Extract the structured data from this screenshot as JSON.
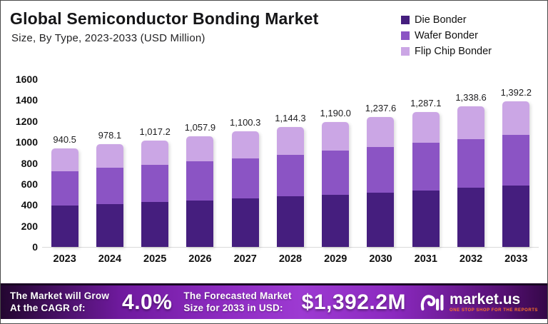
{
  "header": {
    "title": "Global Semiconductor Bonding Market",
    "subtitle": "Size, By Type, 2023-2033 (USD Million)"
  },
  "legend": [
    {
      "label": "Die Bonder",
      "color": "#451e7e"
    },
    {
      "label": "Wafer Bonder",
      "color": "#8b54c4"
    },
    {
      "label": "Flip Chip Bonder",
      "color": "#cba6e5"
    }
  ],
  "chart_data": {
    "type": "bar",
    "stacked": true,
    "title": "Global Semiconductor Bonding Market Size, By Type, 2023-2033 (USD Million)",
    "categories": [
      "2023",
      "2024",
      "2025",
      "2026",
      "2027",
      "2028",
      "2029",
      "2030",
      "2031",
      "2032",
      "2033"
    ],
    "totals": [
      940.5,
      978.1,
      1017.2,
      1057.9,
      1100.3,
      1144.3,
      1190.0,
      1237.6,
      1287.1,
      1338.6,
      1392.2
    ],
    "total_labels": [
      "940.5",
      "978.1",
      "1,017.2",
      "1,057.9",
      "1,100.3",
      "1,144.3",
      "1,190.0",
      "1,237.6",
      "1,287.1",
      "1,338.6",
      "1,392.2"
    ],
    "series": [
      {
        "name": "Die Bonder",
        "color": "#451e7e",
        "values": [
          395.0,
          410.8,
          427.2,
          444.3,
          462.1,
          480.6,
          499.8,
          519.8,
          540.6,
          562.2,
          584.7
        ]
      },
      {
        "name": "Wafer Bonder",
        "color": "#8b54c4",
        "values": [
          329.2,
          342.3,
          356.0,
          370.3,
          385.1,
          400.5,
          416.5,
          433.2,
          450.5,
          468.5,
          487.3
        ]
      },
      {
        "name": "Flip Chip Bonder",
        "color": "#cba6e5",
        "values": [
          216.3,
          225.0,
          234.0,
          243.3,
          253.1,
          263.2,
          273.7,
          284.6,
          296.0,
          307.9,
          320.2
        ]
      }
    ],
    "xlabel": "",
    "ylabel": "",
    "ylim": [
      0,
      1600
    ],
    "yticks": [
      0,
      200,
      400,
      600,
      800,
      1000,
      1200,
      1400,
      1600
    ],
    "grid": false,
    "legend_position": "top-right",
    "note": "Series values estimated from stacked segment heights; totals are labeled on chart"
  },
  "banner": {
    "cagr_line1": "The Market will Grow",
    "cagr_line2": "At the CAGR of:",
    "cagr_value": "4.0%",
    "forecast_line1": "The Forecasted Market",
    "forecast_line2": "Size for 2033 in USD:",
    "forecast_value": "$1,392.2M",
    "brand": "market.us",
    "brand_tagline": "ONE STOP SHOP FOR THE REPORTS"
  }
}
